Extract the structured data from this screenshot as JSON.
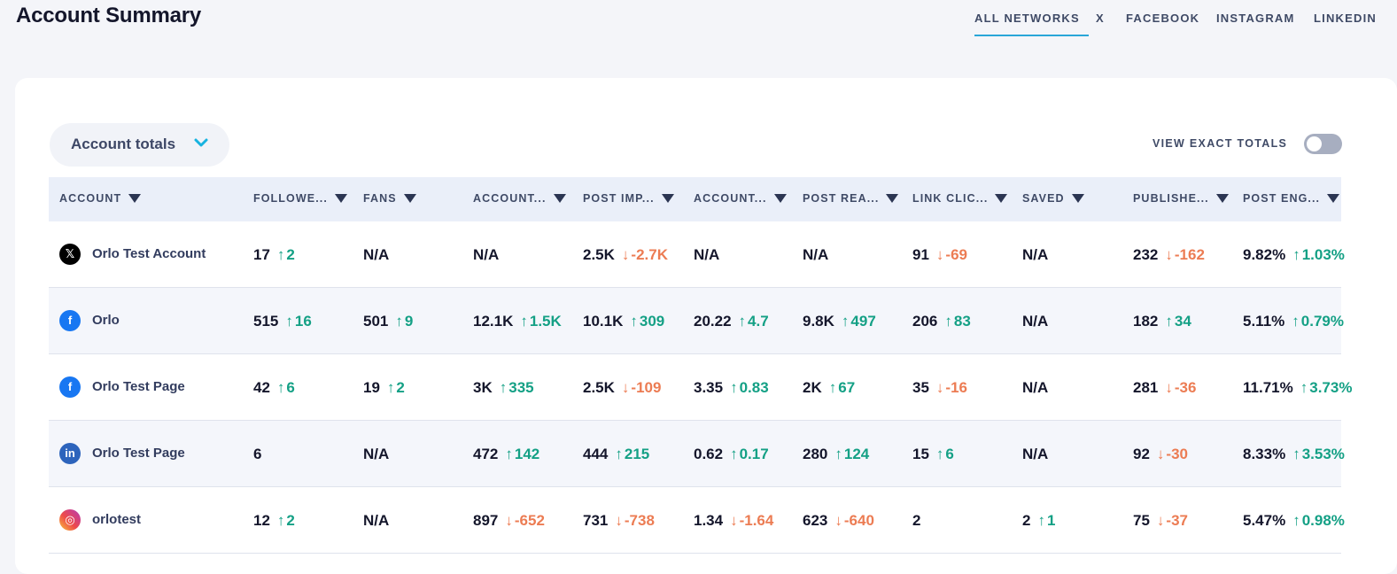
{
  "title": "Account Summary",
  "network_tabs": [
    {
      "label": "ALL NETWORKS",
      "active": true
    },
    {
      "label": "X",
      "active": false
    },
    {
      "label": "FACEBOOK",
      "active": false
    },
    {
      "label": "INSTAGRAM",
      "active": false
    },
    {
      "label": "LINKEDIN",
      "active": false
    }
  ],
  "dropdown": {
    "label": "Account totals"
  },
  "exact_totals": {
    "label": "VIEW EXACT TOTALS",
    "enabled": false
  },
  "columns": [
    "ACCOUNT",
    "FOLLOWE...",
    "FANS",
    "ACCOUNT...",
    "POST IMP...",
    "ACCOUNT...",
    "POST REA...",
    "LINK CLIC...",
    "SAVED",
    "PUBLISHE...",
    "POST ENG..."
  ],
  "rows": [
    {
      "network": "x",
      "account": "Orlo Test Account",
      "cells": [
        {
          "v": "17",
          "c": "2",
          "d": "up"
        },
        {
          "v": "N/A"
        },
        {
          "v": "N/A"
        },
        {
          "v": "2.5K",
          "c": "-2.7K",
          "d": "down"
        },
        {
          "v": "N/A"
        },
        {
          "v": "N/A"
        },
        {
          "v": "91",
          "c": "-69",
          "d": "down"
        },
        {
          "v": "N/A"
        },
        {
          "v": "232",
          "c": "-162",
          "d": "down"
        },
        {
          "v": "9.82%",
          "c": "1.03%",
          "d": "up"
        }
      ]
    },
    {
      "network": "facebook",
      "account": "Orlo",
      "cells": [
        {
          "v": "515",
          "c": "16",
          "d": "up"
        },
        {
          "v": "501",
          "c": "9",
          "d": "up"
        },
        {
          "v": "12.1K",
          "c": "1.5K",
          "d": "up"
        },
        {
          "v": "10.1K",
          "c": "309",
          "d": "up"
        },
        {
          "v": "20.22",
          "c": "4.7",
          "d": "up"
        },
        {
          "v": "9.8K",
          "c": "497",
          "d": "up"
        },
        {
          "v": "206",
          "c": "83",
          "d": "up"
        },
        {
          "v": "N/A"
        },
        {
          "v": "182",
          "c": "34",
          "d": "up"
        },
        {
          "v": "5.11%",
          "c": "0.79%",
          "d": "up"
        }
      ]
    },
    {
      "network": "facebook",
      "account": "Orlo Test Page",
      "cells": [
        {
          "v": "42",
          "c": "6",
          "d": "up"
        },
        {
          "v": "19",
          "c": "2",
          "d": "up"
        },
        {
          "v": "3K",
          "c": "335",
          "d": "up"
        },
        {
          "v": "2.5K",
          "c": "-109",
          "d": "down"
        },
        {
          "v": "3.35",
          "c": "0.83",
          "d": "up"
        },
        {
          "v": "2K",
          "c": "67",
          "d": "up"
        },
        {
          "v": "35",
          "c": "-16",
          "d": "down"
        },
        {
          "v": "N/A"
        },
        {
          "v": "281",
          "c": "-36",
          "d": "down"
        },
        {
          "v": "11.71%",
          "c": "3.73%",
          "d": "up"
        }
      ]
    },
    {
      "network": "linkedin",
      "account": "Orlo Test Page",
      "cells": [
        {
          "v": "6"
        },
        {
          "v": "N/A"
        },
        {
          "v": "472",
          "c": "142",
          "d": "up"
        },
        {
          "v": "444",
          "c": "215",
          "d": "up"
        },
        {
          "v": "0.62",
          "c": "0.17",
          "d": "up"
        },
        {
          "v": "280",
          "c": "124",
          "d": "up"
        },
        {
          "v": "15",
          "c": "6",
          "d": "up"
        },
        {
          "v": "N/A"
        },
        {
          "v": "92",
          "c": "-30",
          "d": "down"
        },
        {
          "v": "8.33%",
          "c": "3.53%",
          "d": "up"
        }
      ]
    },
    {
      "network": "instagram",
      "account": "orlotest",
      "cells": [
        {
          "v": "12",
          "c": "2",
          "d": "up"
        },
        {
          "v": "N/A"
        },
        {
          "v": "897",
          "c": "-652",
          "d": "down"
        },
        {
          "v": "731",
          "c": "-738",
          "d": "down"
        },
        {
          "v": "1.34",
          "c": "-1.64",
          "d": "down"
        },
        {
          "v": "623",
          "c": "-640",
          "d": "down"
        },
        {
          "v": "2"
        },
        {
          "v": "2",
          "c": "1",
          "d": "up"
        },
        {
          "v": "75",
          "c": "-37",
          "d": "down"
        },
        {
          "v": "5.47%",
          "c": "0.98%",
          "d": "up"
        }
      ]
    }
  ]
}
